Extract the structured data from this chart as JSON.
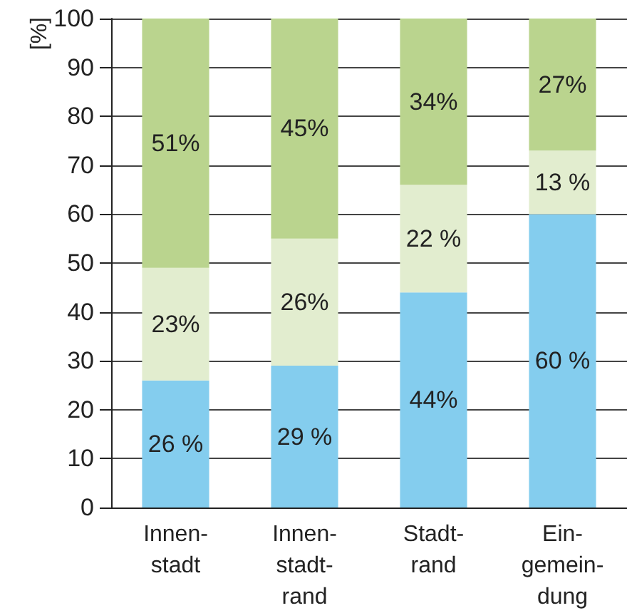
{
  "chart_data": {
    "type": "bar",
    "stacked": true,
    "ylabel": "[%]",
    "categories": [
      "Innen-\nstadt",
      "Innen-\nstadt-\nrand",
      "Stadt-\nrand",
      "Ein-\ngemein-\ndung"
    ],
    "series": [
      {
        "color": "#84cdee",
        "values": [
          26,
          29,
          44,
          60
        ],
        "value_labels": [
          "26 %",
          "29 %",
          "44%",
          "60 %"
        ]
      },
      {
        "color": "#e2edcf",
        "values": [
          23,
          26,
          22,
          13
        ],
        "value_labels": [
          "23%",
          "26%",
          "22 %",
          "13 %"
        ]
      },
      {
        "color": "#bad48e",
        "values": [
          51,
          45,
          34,
          27
        ],
        "value_labels": [
          "51%",
          "45%",
          "34%",
          "27%"
        ]
      }
    ],
    "ylim": [
      0,
      100
    ],
    "yticks": [
      0,
      10,
      20,
      30,
      40,
      50,
      60,
      70,
      80,
      90,
      100
    ],
    "grid": "y"
  }
}
